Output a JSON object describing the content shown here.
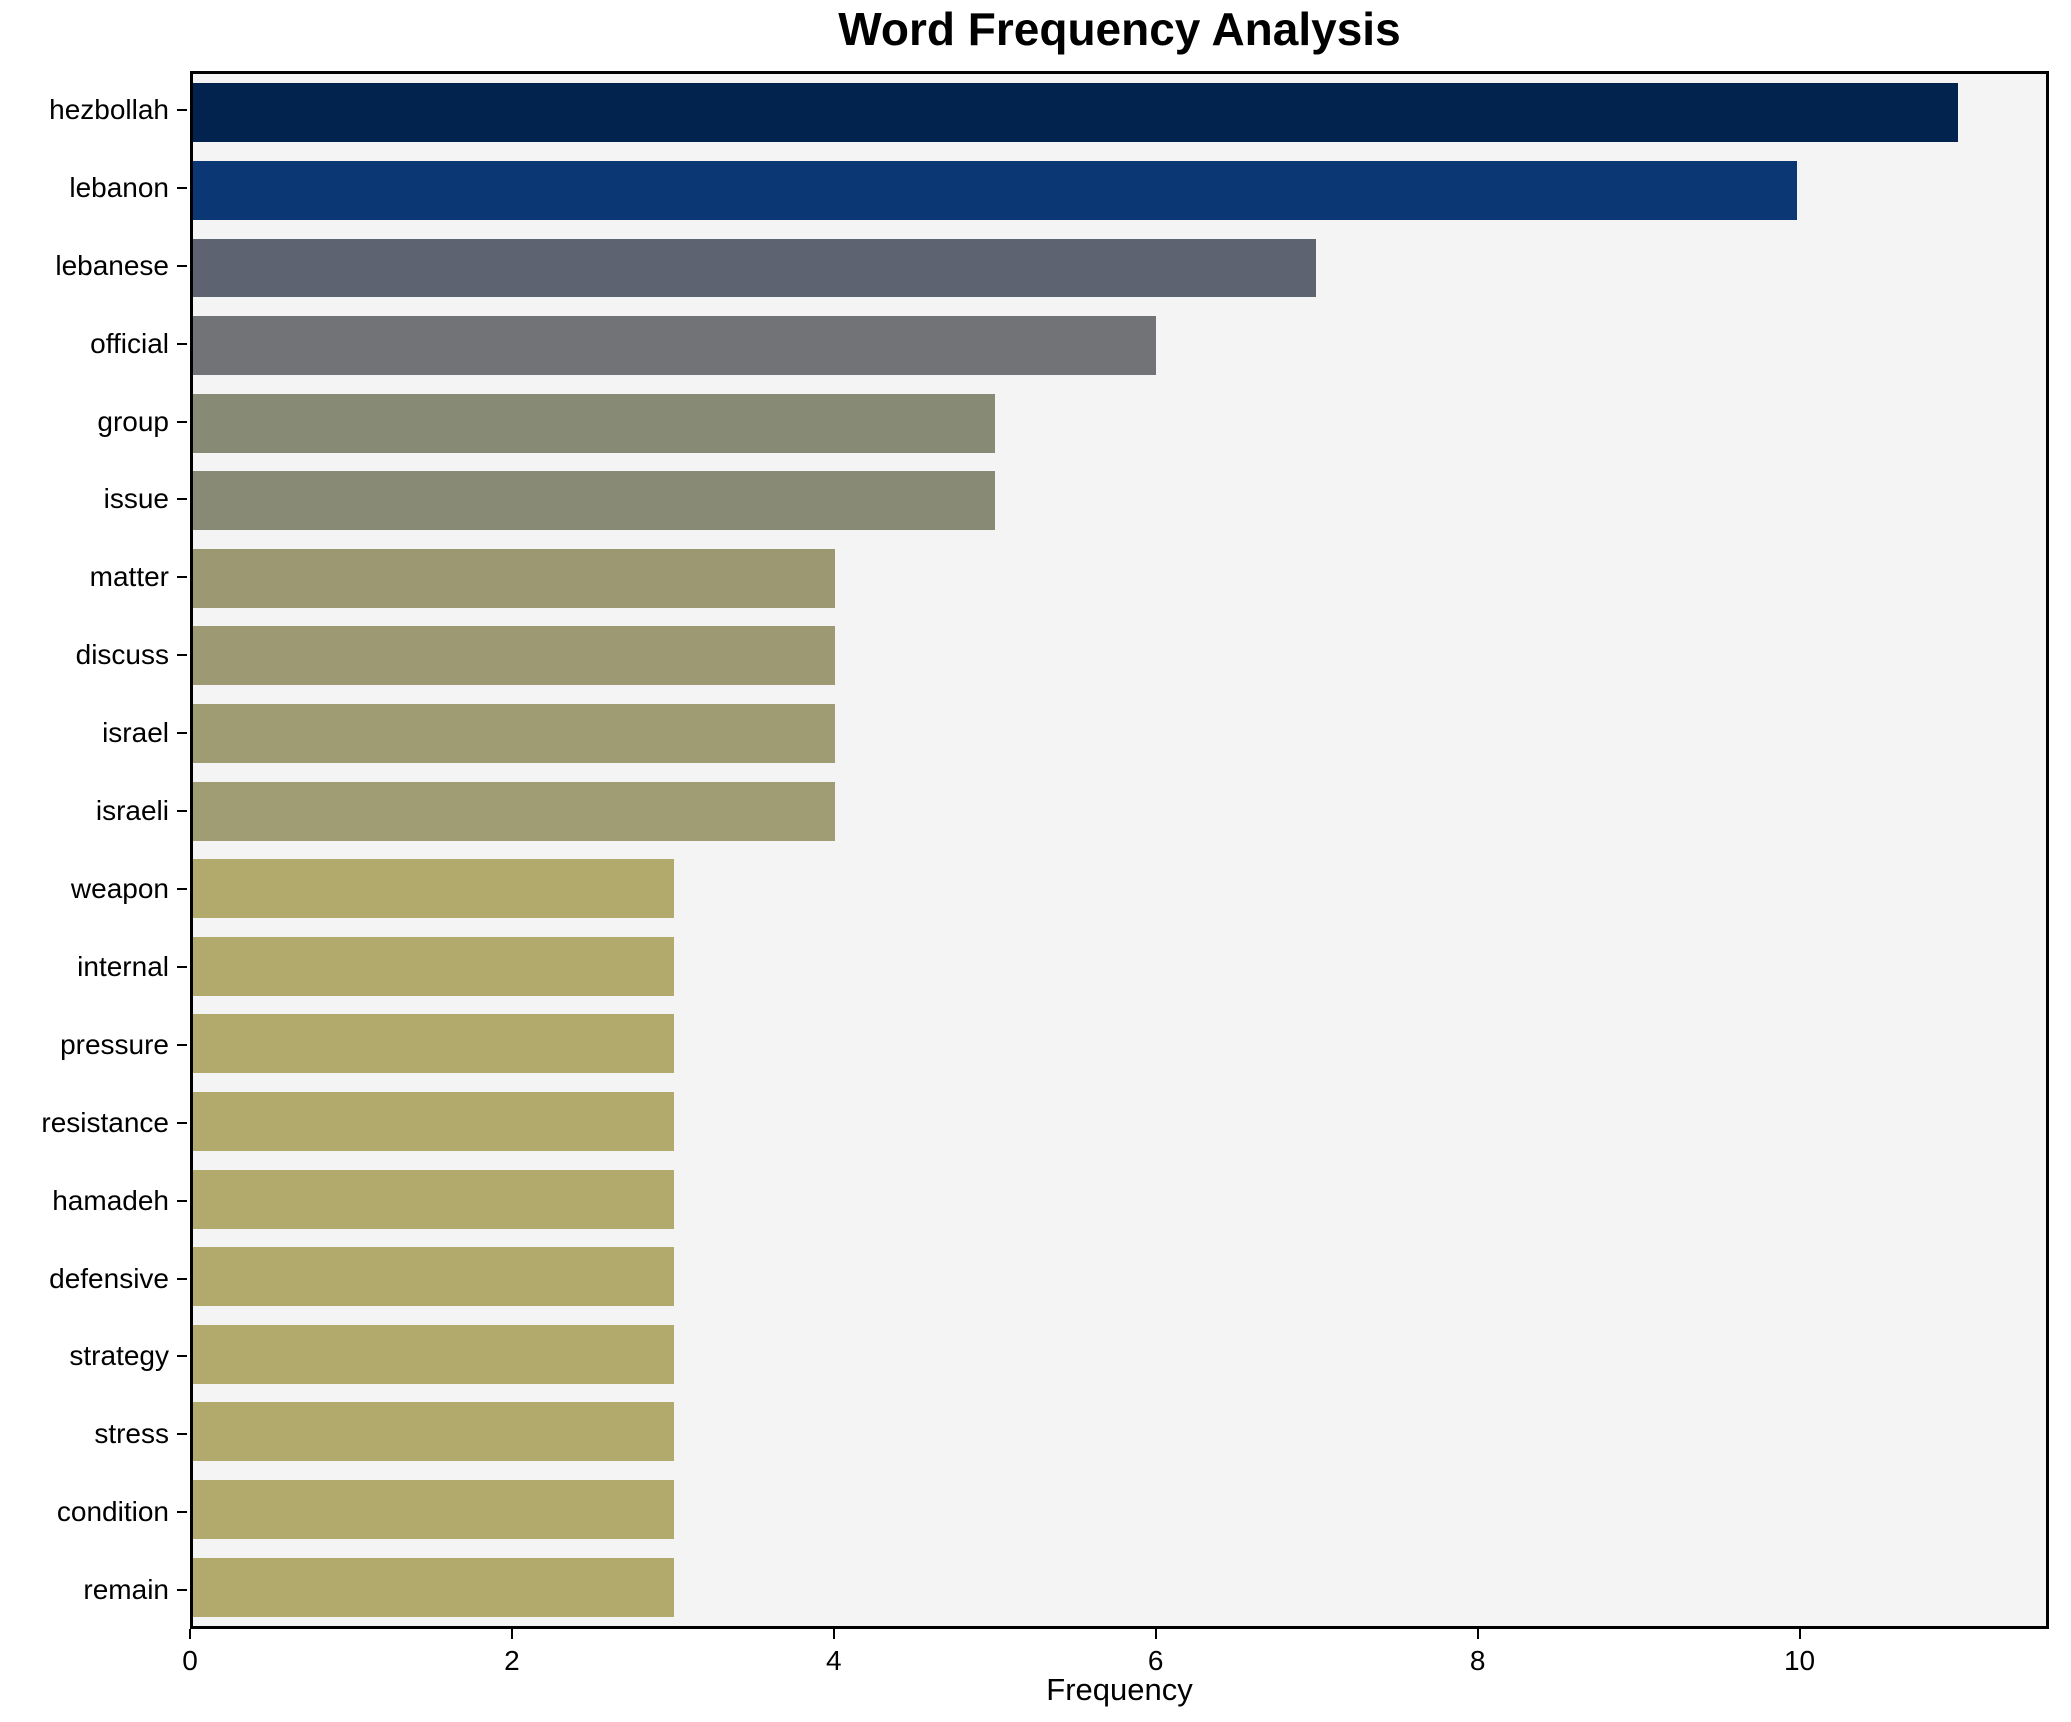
{
  "chart_data": {
    "type": "bar",
    "orientation": "horizontal",
    "title": "Word Frequency Analysis",
    "xlabel": "Frequency",
    "ylabel": "",
    "categories": [
      "hezbollah",
      "lebanon",
      "lebanese",
      "official",
      "group",
      "issue",
      "matter",
      "discuss",
      "israel",
      "israeli",
      "weapon",
      "internal",
      "pressure",
      "resistance",
      "hamadeh",
      "defensive",
      "strategy",
      "stress",
      "condition",
      "remain"
    ],
    "values": [
      11,
      10,
      7,
      6,
      5,
      5,
      4,
      4,
      4,
      4,
      3,
      3,
      3,
      3,
      3,
      3,
      3,
      3,
      3,
      3
    ],
    "bar_colors": [
      "#03234f",
      "#0b3774",
      "#5d6370",
      "#717376",
      "#878a74",
      "#888a75",
      "#9b9872",
      "#9c9973",
      "#9f9b72",
      "#a09c73",
      "#b2aa6d",
      "#b2aa6d",
      "#b2aa6d",
      "#b2aa6d",
      "#b2aa6d",
      "#b2aa6d",
      "#b2aa6d",
      "#b2aa6d",
      "#b2aa6d",
      "#b2aa6d"
    ],
    "xlim": [
      0,
      11.55
    ],
    "xticks": [
      0,
      2,
      4,
      6,
      8,
      10
    ],
    "grid": false,
    "legend": null,
    "plot_background": "#f5f4f5",
    "figure_background": "#ffffff",
    "spine_color": "#000000",
    "text_color": "#000000"
  }
}
